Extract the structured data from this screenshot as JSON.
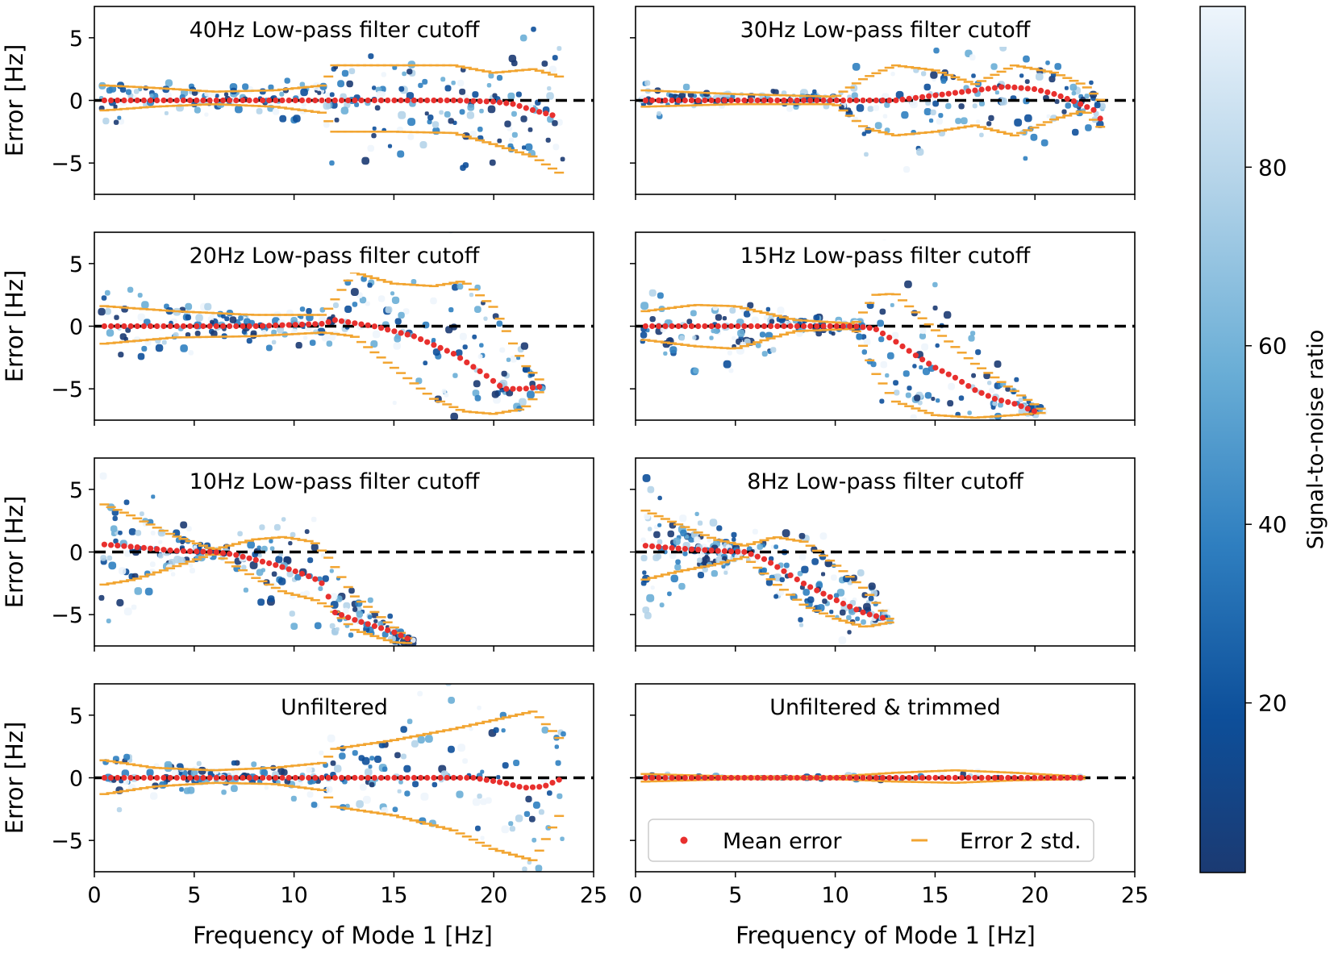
{
  "figure": {
    "shared_xlabel": "Frequency of Mode 1 [Hz]",
    "shared_ylabel": "Error [Hz]",
    "xlim": [
      0,
      25
    ],
    "ylim": [
      -7.5,
      7.5
    ],
    "xticks": [
      "0",
      "5",
      "10",
      "15",
      "20",
      "25"
    ],
    "yticks": [
      "5",
      "0",
      "−5"
    ],
    "colors": {
      "mean_error": "#e8302e",
      "error_2std": "#f2a531",
      "zero_line": "#000000"
    }
  },
  "colorbar": {
    "label": "Signal-to-noise ratio",
    "range": [
      1,
      98
    ],
    "ticks": [
      "20",
      "40",
      "60",
      "80"
    ],
    "tick_values": [
      20,
      40,
      60,
      80
    ],
    "colormap": "Blues_r",
    "colors": [
      "#1b3a72",
      "#0d4f9a",
      "#2f7fc0",
      "#6aaed6",
      "#b5d4e9",
      "#eef5fc"
    ]
  },
  "legend": {
    "placement": "lower-center",
    "entries": [
      {
        "label": "Mean error",
        "marker": "dot"
      },
      {
        "label": "Error 2 std.",
        "marker": "dash"
      }
    ]
  },
  "chart_data": [
    {
      "type": "scatter",
      "title": "40Hz Low-pass filter cutoff",
      "xlim": [
        0,
        25
      ],
      "ylim": [
        -7.5,
        7.5
      ],
      "mean_error": {
        "x": [
          0.5,
          3,
          6,
          9,
          12,
          15,
          18,
          20,
          21,
          22,
          23
        ],
        "y": [
          0,
          0,
          0,
          0,
          0,
          0,
          0,
          -0.1,
          -0.3,
          -0.8,
          -1.2
        ]
      },
      "upper_2std": {
        "x": [
          0.5,
          3,
          6,
          9,
          11.5,
          12,
          15,
          18,
          20,
          22,
          23.5
        ],
        "y": [
          1.2,
          1,
          0.7,
          0.8,
          1.2,
          2.8,
          2.8,
          2.8,
          2.2,
          2.5,
          1.8
        ]
      },
      "lower_2std": {
        "x": [
          0.5,
          3,
          6,
          9,
          11.5,
          12,
          15,
          18,
          20,
          22,
          23.5
        ],
        "y": [
          -0.8,
          -0.5,
          -0.3,
          -0.5,
          -1,
          -2.5,
          -2.5,
          -2.6,
          -3.5,
          -4.5,
          -6
        ]
      }
    },
    {
      "type": "scatter",
      "title": "30Hz Low-pass filter cutoff",
      "xlim": [
        0,
        25
      ],
      "ylim": [
        -7.5,
        7.5
      ],
      "mean_error": {
        "x": [
          0.5,
          5,
          10,
          13,
          15,
          17,
          18.5,
          20,
          21,
          22,
          23,
          23.5
        ],
        "y": [
          0,
          0,
          0,
          0,
          0.4,
          0.8,
          1.1,
          0.9,
          0.5,
          -0.1,
          -0.8,
          -2
        ]
      },
      "upper_2std": {
        "x": [
          0.5,
          5,
          10,
          11.5,
          13,
          15,
          17,
          19,
          21,
          22.5,
          23.5
        ],
        "y": [
          0.8,
          0.5,
          0.3,
          1.8,
          2.8,
          2.4,
          1.3,
          2.8,
          2.2,
          1.2,
          -0.3
        ]
      },
      "lower_2std": {
        "x": [
          0.5,
          5,
          10,
          11.5,
          13,
          15,
          17,
          19,
          21,
          22.5,
          23.5
        ],
        "y": [
          -0.5,
          -0.3,
          -0.3,
          -2.2,
          -2.8,
          -2.5,
          -2,
          -2.8,
          -1.5,
          -0.8,
          -2.5
        ]
      }
    },
    {
      "type": "scatter",
      "title": "20Hz Low-pass filter cutoff",
      "xlim": [
        0,
        25
      ],
      "ylim": [
        -7.5,
        7.5
      ],
      "mean_error": {
        "x": [
          0.5,
          4,
          8,
          11.5,
          12,
          14,
          16,
          18,
          19.5,
          20.5,
          21.5,
          22.5
        ],
        "y": [
          0,
          0,
          0,
          0.2,
          0.5,
          0,
          -0.8,
          -2.2,
          -3.8,
          -5,
          -5,
          -4.8
        ]
      },
      "upper_2std": {
        "x": [
          0.5,
          4,
          8,
          11.5,
          13,
          15,
          17,
          18.5,
          20,
          21.5,
          22.5
        ],
        "y": [
          1.6,
          1.2,
          0.9,
          0.9,
          4.3,
          3.4,
          3.2,
          3.6,
          1.5,
          -3,
          -4.6
        ]
      },
      "lower_2std": {
        "x": [
          0.5,
          4,
          8,
          11.5,
          13,
          15,
          17,
          18.5,
          20,
          21.5,
          22.5
        ],
        "y": [
          -1.4,
          -0.9,
          -0.8,
          -0.5,
          -0.8,
          -3.3,
          -5.8,
          -6.8,
          -7,
          -6.6,
          -4.9
        ]
      }
    },
    {
      "type": "scatter",
      "title": "15Hz Low-pass filter cutoff",
      "xlim": [
        0,
        25
      ],
      "ylim": [
        -7.5,
        7.5
      ],
      "mean_error": {
        "x": [
          0.5,
          4,
          8,
          11,
          12,
          13,
          14,
          15,
          16,
          17,
          18,
          19,
          20
        ],
        "y": [
          0,
          0,
          0,
          0,
          -0.2,
          -1.2,
          -2.3,
          -3.3,
          -4.1,
          -5.1,
          -5.8,
          -6.2,
          -6.8
        ]
      },
      "upper_2std": {
        "x": [
          0.5,
          3,
          5,
          8,
          11,
          12,
          13,
          15,
          17,
          19,
          20.5
        ],
        "y": [
          1.2,
          1.7,
          1.6,
          0.5,
          0.2,
          2.5,
          2.6,
          -0.3,
          -3,
          -5.2,
          -6.8
        ]
      },
      "lower_2std": {
        "x": [
          0.5,
          3,
          5,
          8,
          11,
          12,
          13,
          15,
          17,
          19,
          20.5
        ],
        "y": [
          -1.1,
          -1.6,
          -1.8,
          -0.4,
          -0.2,
          -3.7,
          -6,
          -7.1,
          -7.3,
          -7.1,
          -6.9
        ]
      }
    },
    {
      "type": "scatter",
      "title": "10Hz Low-pass filter cutoff",
      "xlim": [
        0,
        25
      ],
      "ylim": [
        -7.5,
        7.5
      ],
      "mean_error": {
        "x": [
          0.5,
          2,
          4,
          6,
          7,
          8,
          9,
          10,
          11,
          11.5,
          12,
          13,
          14,
          15,
          15.8
        ],
        "y": [
          0.6,
          0.4,
          0.1,
          0,
          -0.2,
          -0.6,
          -1,
          -1.5,
          -2.1,
          -2.6,
          -4.8,
          -5.4,
          -5.9,
          -6.4,
          -7
        ]
      },
      "upper_2std": {
        "x": [
          0.5,
          2,
          4,
          6,
          8,
          9.5,
          11,
          11.8,
          13,
          15,
          16
        ],
        "y": [
          3.8,
          2.8,
          1.3,
          0.2,
          1,
          1.2,
          0.8,
          -0.6,
          -3.5,
          -6,
          -7.3
        ]
      },
      "lower_2std": {
        "x": [
          0.5,
          2,
          4,
          6,
          8,
          9.5,
          11,
          11.8,
          13,
          15,
          16
        ],
        "y": [
          -2.6,
          -2.2,
          -1.2,
          -0.1,
          -2,
          -3.2,
          -3.8,
          -4.4,
          -6.2,
          -7.2,
          -7.3
        ]
      }
    },
    {
      "type": "scatter",
      "title": "8Hz Low-pass filter cutoff",
      "xlim": [
        0,
        25
      ],
      "ylim": [
        -7.5,
        7.5
      ],
      "mean_error": {
        "x": [
          0.5,
          2,
          4,
          5.5,
          6.5,
          7.5,
          8.5,
          9.5,
          10.5,
          11.5,
          12.5
        ],
        "y": [
          0.5,
          0.3,
          0.1,
          0,
          -0.6,
          -1.6,
          -2.6,
          -3.4,
          -4.2,
          -4.9,
          -5.3
        ]
      },
      "upper_2std": {
        "x": [
          0.5,
          2,
          4,
          5.5,
          7,
          8.5,
          10,
          11.5,
          12.8
        ],
        "y": [
          3.3,
          2.3,
          1,
          0.5,
          1.2,
          0.8,
          -1,
          -3,
          -5.5
        ]
      },
      "lower_2std": {
        "x": [
          0.5,
          2,
          4,
          5.5,
          7,
          8.5,
          10,
          11.5,
          12.8
        ],
        "y": [
          -2.2,
          -1.6,
          -1,
          -0.4,
          -2.5,
          -4.3,
          -5.3,
          -6,
          -5.6
        ]
      }
    },
    {
      "type": "scatter",
      "title": "Unfiltered",
      "xlim": [
        0,
        25
      ],
      "ylim": [
        -7.5,
        7.5
      ],
      "mean_error": {
        "x": [
          0.5,
          5,
          10,
          15,
          19,
          20.5,
          21.5,
          22.5,
          23.5
        ],
        "y": [
          0,
          0,
          0,
          0,
          0,
          -0.4,
          -0.8,
          -0.7,
          0
        ]
      },
      "upper_2std": {
        "x": [
          0.5,
          3,
          6,
          9,
          11.5,
          12,
          15,
          18,
          20,
          22,
          23.5
        ],
        "y": [
          1.4,
          0.8,
          0.6,
          0.8,
          1.2,
          2.3,
          3,
          3.9,
          4.6,
          5.3,
          2.8
        ]
      },
      "lower_2std": {
        "x": [
          0.5,
          3,
          6,
          9,
          11.5,
          12,
          15,
          18,
          20,
          22,
          23.5
        ],
        "y": [
          -1.3,
          -0.7,
          -0.4,
          -0.5,
          -1,
          -2.3,
          -3,
          -4.2,
          -5.7,
          -6.6,
          -2.4
        ]
      }
    },
    {
      "type": "scatter",
      "title": "Unfiltered & trimmed",
      "xlim": [
        0,
        25
      ],
      "ylim": [
        -7.5,
        7.5
      ],
      "mean_error": {
        "x": [
          0.5,
          5,
          10,
          15,
          20,
          22.3
        ],
        "y": [
          0,
          0,
          0,
          0,
          0,
          0
        ]
      },
      "upper_2std": {
        "x": [
          0.5,
          5,
          10,
          13,
          16,
          19,
          22.3
        ],
        "y": [
          0.3,
          0.1,
          0.1,
          0.4,
          0.6,
          0.4,
          0.1
        ]
      },
      "lower_2std": {
        "x": [
          0.5,
          5,
          10,
          13,
          16,
          19,
          22.3
        ],
        "y": [
          -0.3,
          -0.1,
          -0.1,
          -0.3,
          -0.4,
          -0.2,
          -0.1
        ]
      }
    }
  ]
}
